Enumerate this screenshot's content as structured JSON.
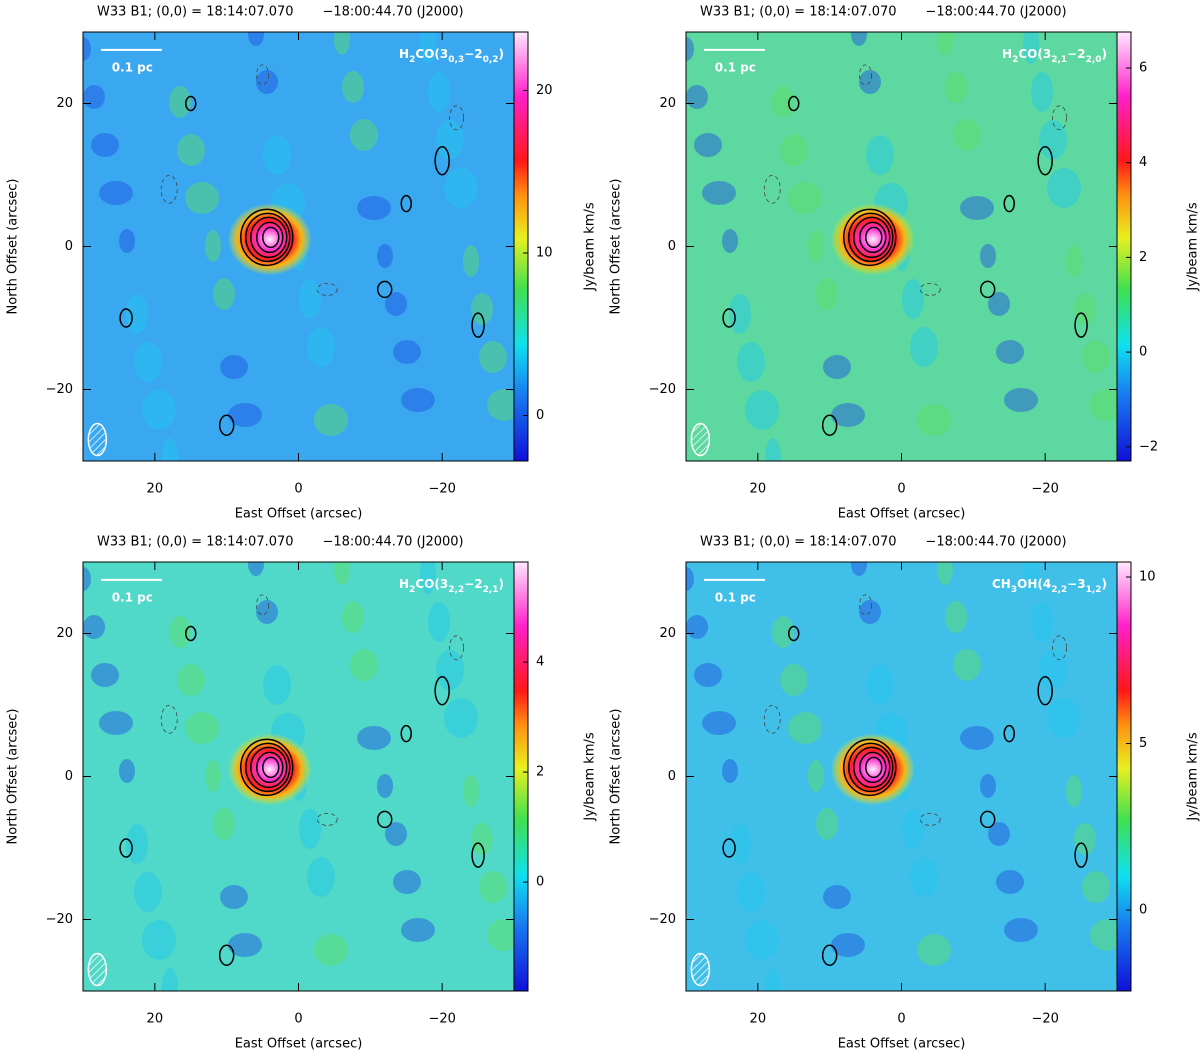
{
  "chart_data": [
    {
      "type": "image",
      "title": "W33 B1; (0,0) = 18:14:07.070       −18:00:44.70 (J2000)",
      "xlabel": "East Offset (arcsec)",
      "ylabel": "North Offset (arcsec)",
      "xlim": [
        30,
        -30
      ],
      "ylim": [
        -30,
        30
      ],
      "xticks": [
        20,
        0,
        {
          "value": -20,
          "label": "−20"
        }
      ],
      "yticks": [
        20,
        0,
        {
          "value": -20,
          "label": "−20"
        }
      ],
      "line_label": [
        {
          "text": "H"
        },
        {
          "text": "2",
          "sub": true
        },
        {
          "text": "CO(3"
        },
        {
          "text": "0,3",
          "sub": true
        },
        {
          "text": "−2"
        },
        {
          "text": "0,2",
          "sub": true
        },
        {
          "text": ")"
        }
      ],
      "scale_bar_label": "0.1 pc",
      "colorbar": {
        "label": "Jy/beam km/s",
        "lim": [
          -2.8,
          23.6
        ],
        "ticks": [
          0,
          10,
          20
        ]
      }
    },
    {
      "type": "image",
      "title": "W33 B1; (0,0) = 18:14:07.070       −18:00:44.70 (J2000)",
      "xlabel": "East Offset (arcsec)",
      "ylabel": "North Offset (arcsec)",
      "xlim": [
        30,
        -30
      ],
      "ylim": [
        -30,
        30
      ],
      "xticks": [
        20,
        0,
        {
          "value": -20,
          "label": "−20"
        }
      ],
      "yticks": [
        20,
        0,
        {
          "value": -20,
          "label": "−20"
        }
      ],
      "line_label": [
        {
          "text": "H"
        },
        {
          "text": "2",
          "sub": true
        },
        {
          "text": "CO(3"
        },
        {
          "text": "2,1",
          "sub": true
        },
        {
          "text": "−2"
        },
        {
          "text": "2,0",
          "sub": true
        },
        {
          "text": ")"
        }
      ],
      "scale_bar_label": "0.1 pc",
      "colorbar": {
        "label": "Jy/beam km/s",
        "lim": [
          -2.3,
          6.76
        ],
        "ticks": [
          {
            "value": -2,
            "label": "−2"
          },
          0,
          2,
          4,
          6
        ]
      }
    },
    {
      "type": "image",
      "title": "W33 B1; (0,0) = 18:14:07.070       −18:00:44.70 (J2000)",
      "xlabel": "East Offset (arcsec)",
      "ylabel": "North Offset (arcsec)",
      "xlim": [
        30,
        -30
      ],
      "ylim": [
        -30,
        30
      ],
      "xticks": [
        20,
        0,
        {
          "value": -20,
          "label": "−20"
        }
      ],
      "yticks": [
        20,
        0,
        {
          "value": -20,
          "label": "−20"
        }
      ],
      "line_label": [
        {
          "text": "H"
        },
        {
          "text": "2",
          "sub": true
        },
        {
          "text": "CO(3"
        },
        {
          "text": "2,2",
          "sub": true
        },
        {
          "text": "−2"
        },
        {
          "text": "2,1",
          "sub": true
        },
        {
          "text": ")"
        }
      ],
      "scale_bar_label": "0.1 pc",
      "colorbar": {
        "label": "Jy/beam km/s",
        "lim": [
          -1.98,
          5.82
        ],
        "ticks": [
          0,
          2,
          4
        ]
      }
    },
    {
      "type": "image",
      "title": "W33 B1; (0,0) = 18:14:07.070       −18:00:44.70 (J2000)",
      "xlabel": "East Offset (arcsec)",
      "ylabel": "North Offset (arcsec)",
      "xlim": [
        30,
        -30
      ],
      "ylim": [
        -30,
        30
      ],
      "xticks": [
        20,
        0,
        {
          "value": -20,
          "label": "−20"
        }
      ],
      "yticks": [
        20,
        0,
        {
          "value": -20,
          "label": "−20"
        }
      ],
      "line_label": [
        {
          "text": "CH"
        },
        {
          "text": "3",
          "sub": true
        },
        {
          "text": "OH(4"
        },
        {
          "text": "2,2",
          "sub": true
        },
        {
          "text": "−3"
        },
        {
          "text": "1,2",
          "sub": true
        },
        {
          "text": ")"
        }
      ],
      "scale_bar_label": "0.1 pc",
      "colorbar": {
        "label": "Jy/beam km/s",
        "lim": [
          -2.43,
          10.45
        ],
        "ticks": [
          0,
          5,
          10
        ]
      }
    }
  ]
}
